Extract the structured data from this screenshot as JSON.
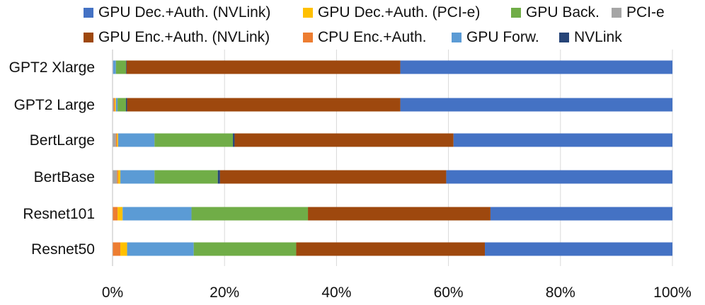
{
  "chart_data": {
    "type": "bar",
    "orientation": "horizontal",
    "stacked": true,
    "percent": true,
    "title": "",
    "xlabel": "",
    "ylabel": "",
    "xlim": [
      0,
      100
    ],
    "xticks": [
      "0%",
      "20%",
      "40%",
      "60%",
      "80%",
      "100%"
    ],
    "grid": true,
    "legend_position": "top",
    "categories": [
      "GPT2 Xlarge",
      "GPT2 Large",
      "BertLarge",
      "BertBase",
      "Resnet101",
      "Resnet50"
    ],
    "series": [
      {
        "name": "PCI-e",
        "color": "#a5a5a5",
        "values": [
          0.1,
          0.2,
          0.6,
          0.8,
          0.0,
          0.0
        ]
      },
      {
        "name": "CPU Enc.+Auth.",
        "color": "#ed7d31",
        "values": [
          0.0,
          0.2,
          0.2,
          0.2,
          0.9,
          1.4
        ]
      },
      {
        "name": "GPU Dec.+Auth. (PCI-e)",
        "color": "#ffc000",
        "values": [
          0.0,
          0.2,
          0.2,
          0.4,
          0.9,
          1.2
        ]
      },
      {
        "name": "GPU Forw.",
        "color": "#5b9bd5",
        "values": [
          0.5,
          0.3,
          6.5,
          6.1,
          12.3,
          11.9
        ]
      },
      {
        "name": "GPU Back.",
        "color": "#70ad47",
        "values": [
          1.8,
          1.5,
          14.0,
          11.3,
          20.8,
          18.3
        ]
      },
      {
        "name": "NVLink",
        "color": "#264478",
        "values": [
          0.1,
          0.2,
          0.3,
          0.4,
          0.0,
          0.0
        ]
      },
      {
        "name": "GPU Enc.+Auth. (NVLink)",
        "color": "#9e480e",
        "values": [
          48.9,
          48.8,
          39.1,
          40.4,
          32.6,
          33.7
        ]
      },
      {
        "name": "GPU Dec.+Auth. (NVLink)",
        "color": "#4472c4",
        "values": [
          48.6,
          48.6,
          39.1,
          40.4,
          32.5,
          33.5
        ]
      }
    ],
    "legend_order": [
      "GPU Dec.+Auth. (NVLink)",
      "GPU Dec.+Auth. (PCI-e)",
      "GPU Back.",
      "PCI-e",
      "GPU Enc.+Auth. (NVLink)",
      "CPU Enc.+Auth.",
      "GPU Forw.",
      "NVLink"
    ]
  }
}
